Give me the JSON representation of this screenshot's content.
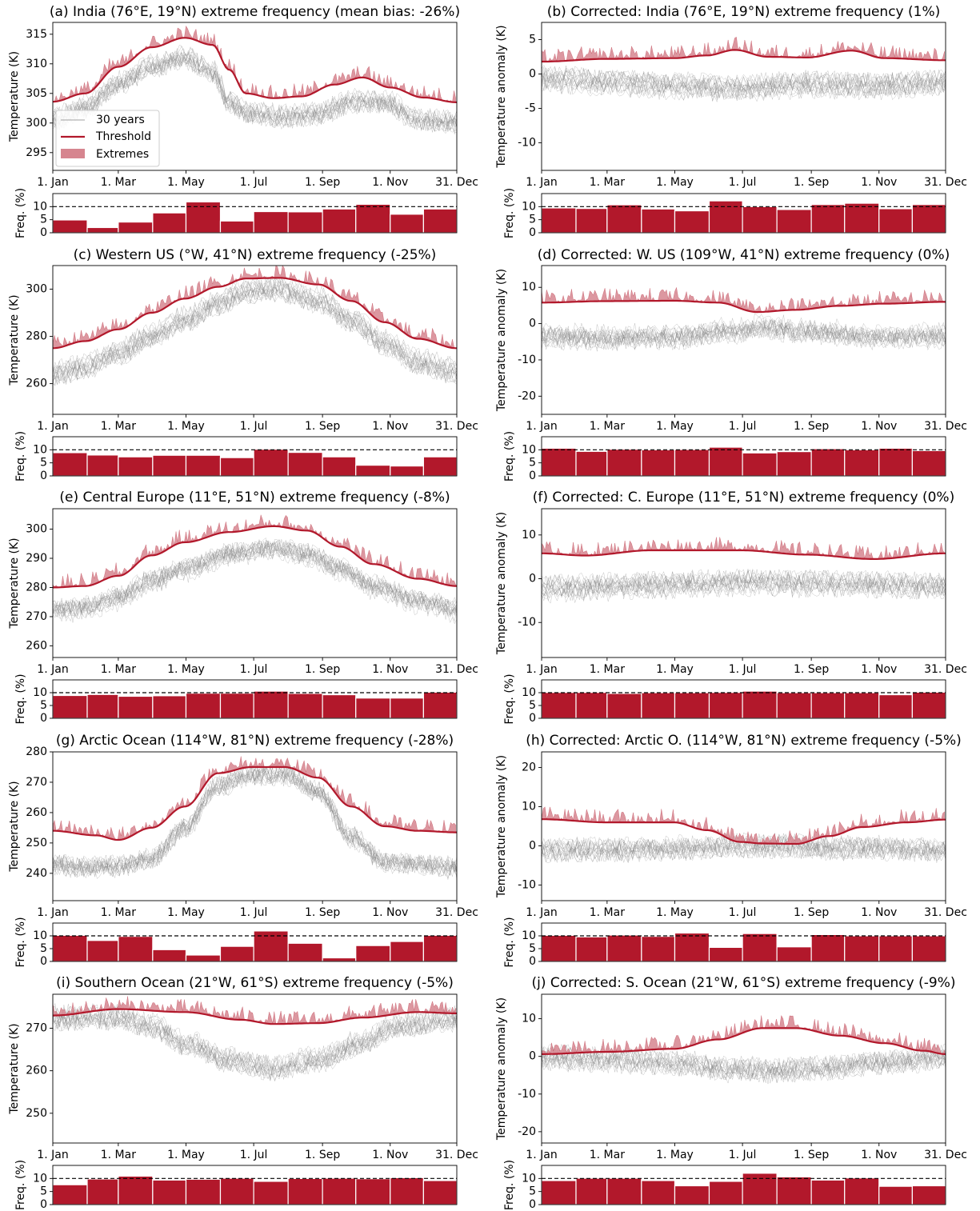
{
  "colors": {
    "threshold": "#b2182b",
    "extremes": "#d6858f",
    "bars": "#b2182b",
    "years": "#808080"
  },
  "month_tick_labels": [
    "1. Jan",
    "1. Mar",
    "1. May",
    "1. Jul",
    "1. Sep",
    "1. Nov",
    "31. Dec"
  ],
  "reference_line": 10,
  "legend": {
    "years": "30 years",
    "threshold": "Threshold",
    "extremes": "Extremes"
  },
  "chart_data": [
    {
      "id": "a",
      "type": "line",
      "title": "(a) India (76°E, 19°N) extreme frequency (mean bias: -26%)",
      "ylabel": "Temperature (K)",
      "ylim": [
        292,
        317
      ],
      "yticks": [
        295,
        300,
        305,
        310,
        315
      ],
      "threshold_curve": [
        [
          1,
          303.6
        ],
        [
          30,
          305
        ],
        [
          60,
          309.5
        ],
        [
          90,
          312.8
        ],
        [
          120,
          314.4
        ],
        [
          145,
          313.2
        ],
        [
          160,
          309
        ],
        [
          175,
          305
        ],
        [
          200,
          304.2
        ],
        [
          225,
          304.5
        ],
        [
          255,
          306.5
        ],
        [
          280,
          307.7
        ],
        [
          305,
          306
        ],
        [
          335,
          304.3
        ],
        [
          365,
          303.5
        ]
      ],
      "years_curve": [
        [
          1,
          301
        ],
        [
          30,
          303
        ],
        [
          60,
          307
        ],
        [
          90,
          310
        ],
        [
          120,
          311.5
        ],
        [
          145,
          309
        ],
        [
          160,
          304
        ],
        [
          180,
          302
        ],
        [
          210,
          301.5
        ],
        [
          240,
          302
        ],
        [
          270,
          304
        ],
        [
          300,
          304
        ],
        [
          330,
          301
        ],
        [
          365,
          300.5
        ]
      ],
      "freq_ylabel": "Freq. (%)",
      "freq_yticks": [
        0,
        5,
        10
      ],
      "freq": [
        4.9,
        2.0,
        4.1,
        7.6,
        11.8,
        4.5,
        8.1,
        8.0,
        9.1,
        10.9,
        7.1,
        9.1
      ]
    },
    {
      "id": "b",
      "type": "line",
      "title": "(b) Corrected: India (76°E, 19°N) extreme frequency (1%)",
      "ylabel": "Temperature anomaly (K)",
      "ylim": [
        -14,
        7.5
      ],
      "yticks": [
        -10,
        -5,
        0,
        5
      ],
      "threshold_curve": [
        [
          1,
          1.8
        ],
        [
          60,
          2.2
        ],
        [
          120,
          2.3
        ],
        [
          150,
          2.7
        ],
        [
          175,
          3.5
        ],
        [
          205,
          2.5
        ],
        [
          240,
          2.4
        ],
        [
          280,
          3.4
        ],
        [
          310,
          2.3
        ],
        [
          365,
          2.0
        ]
      ],
      "years_curve": [
        [
          1,
          -0.5
        ],
        [
          60,
          -1
        ],
        [
          120,
          -1.5
        ],
        [
          175,
          -1.8
        ],
        [
          240,
          -1.3
        ],
        [
          300,
          -1.5
        ],
        [
          365,
          -1.0
        ]
      ],
      "freq_ylabel": "Freq. (%)",
      "freq_yticks": [
        0,
        5,
        10
      ],
      "freq": [
        9.5,
        9.3,
        10.7,
        9.1,
        8.4,
        12.2,
        10.0,
        8.9,
        10.8,
        11.3,
        9.2,
        10.8
      ]
    },
    {
      "id": "c",
      "type": "line",
      "title": "(c) Western US (°W, 41°N) extreme frequency (-25%)",
      "ylabel": "Temperature (K)",
      "ylim": [
        247,
        310
      ],
      "yticks": [
        260,
        280,
        300
      ],
      "threshold_curve": [
        [
          1,
          275
        ],
        [
          30,
          278
        ],
        [
          60,
          283
        ],
        [
          90,
          290
        ],
        [
          120,
          296
        ],
        [
          150,
          301
        ],
        [
          175,
          304.5
        ],
        [
          205,
          304.8
        ],
        [
          240,
          302
        ],
        [
          270,
          295
        ],
        [
          300,
          286
        ],
        [
          330,
          279
        ],
        [
          365,
          275
        ]
      ],
      "years_curve": [
        [
          1,
          265
        ],
        [
          30,
          268
        ],
        [
          60,
          274
        ],
        [
          90,
          281
        ],
        [
          120,
          288
        ],
        [
          150,
          295
        ],
        [
          175,
          300
        ],
        [
          205,
          301
        ],
        [
          240,
          296
        ],
        [
          270,
          288
        ],
        [
          300,
          278
        ],
        [
          330,
          270
        ],
        [
          365,
          266
        ]
      ],
      "freq_ylabel": "Freq. (%)",
      "freq_yticks": [
        0,
        5,
        10
      ],
      "freq": [
        8.9,
        8.0,
        7.3,
        7.9,
        7.9,
        7.0,
        10.2,
        9.0,
        7.3,
        4.1,
        3.8,
        7.3
      ]
    },
    {
      "id": "d",
      "type": "line",
      "title": "(d) Corrected: W. US (109°W, 41°N) extreme frequency (0%)",
      "ylabel": "Temperature anomaly (K)",
      "ylim": [
        -25,
        16
      ],
      "yticks": [
        -20,
        -10,
        0,
        10
      ],
      "threshold_curve": [
        [
          1,
          5.8
        ],
        [
          60,
          6.2
        ],
        [
          120,
          6.3
        ],
        [
          160,
          5.8
        ],
        [
          195,
          3.2
        ],
        [
          230,
          3.8
        ],
        [
          270,
          4.9
        ],
        [
          310,
          5.5
        ],
        [
          365,
          6.0
        ]
      ],
      "years_curve": [
        [
          1,
          -3
        ],
        [
          60,
          -3.5
        ],
        [
          120,
          -3
        ],
        [
          175,
          -1.5
        ],
        [
          200,
          -0.5
        ],
        [
          240,
          -1.5
        ],
        [
          300,
          -3
        ],
        [
          365,
          -3
        ]
      ],
      "freq_ylabel": "Freq. (%)",
      "freq_yticks": [
        0,
        5,
        10
      ],
      "freq": [
        10.6,
        9.4,
        10.2,
        10.0,
        10.1,
        11.0,
        8.8,
        9.3,
        10.4,
        10.0,
        10.6,
        9.7
      ]
    },
    {
      "id": "e",
      "type": "line",
      "title": "(e) Central Europe (11°E, 51°N) extreme frequency (-8%)",
      "ylabel": "Temperature (K)",
      "ylim": [
        256,
        307
      ],
      "yticks": [
        260,
        270,
        280,
        290,
        300
      ],
      "threshold_curve": [
        [
          1,
          280
        ],
        [
          30,
          280.5
        ],
        [
          60,
          284
        ],
        [
          90,
          291
        ],
        [
          120,
          295.5
        ],
        [
          160,
          299
        ],
        [
          200,
          301
        ],
        [
          230,
          299.5
        ],
        [
          260,
          294
        ],
        [
          290,
          288
        ],
        [
          330,
          283
        ],
        [
          365,
          280.5
        ]
      ],
      "years_curve": [
        [
          1,
          273
        ],
        [
          30,
          273.5
        ],
        [
          60,
          277
        ],
        [
          90,
          283
        ],
        [
          120,
          287
        ],
        [
          160,
          292
        ],
        [
          200,
          294
        ],
        [
          230,
          292
        ],
        [
          260,
          287
        ],
        [
          290,
          281
        ],
        [
          330,
          276
        ],
        [
          365,
          273
        ]
      ],
      "freq_ylabel": "Freq. (%)",
      "freq_yticks": [
        0,
        5,
        10
      ],
      "freq": [
        8.9,
        9.3,
        8.6,
        8.8,
        9.8,
        9.8,
        10.6,
        9.7,
        9.2,
        7.9,
        7.9,
        10.2
      ]
    },
    {
      "id": "f",
      "type": "line",
      "title": "(f) Corrected: C. Europe (11°E, 51°N) extreme frequency (0%)",
      "ylabel": "Temperature anomaly (K)",
      "ylim": [
        -18,
        16
      ],
      "yticks": [
        -10,
        0,
        10
      ],
      "threshold_curve": [
        [
          1,
          5.8
        ],
        [
          40,
          5.3
        ],
        [
          100,
          6.5
        ],
        [
          180,
          6.5
        ],
        [
          240,
          5.5
        ],
        [
          300,
          4.5
        ],
        [
          365,
          5.8
        ]
      ],
      "years_curve": [
        [
          1,
          -2
        ],
        [
          60,
          -1.5
        ],
        [
          120,
          -1
        ],
        [
          180,
          -0.5
        ],
        [
          240,
          -0.8
        ],
        [
          300,
          -1
        ],
        [
          365,
          -1.5
        ]
      ],
      "freq_ylabel": "Freq. (%)",
      "freq_yticks": [
        0,
        5,
        10
      ],
      "freq": [
        10.1,
        10.1,
        9.7,
        10.0,
        10.0,
        10.1,
        10.6,
        10.0,
        10.0,
        10.0,
        9.2,
        10.2
      ]
    },
    {
      "id": "g",
      "type": "line",
      "title": "(g) Arctic Ocean (114°W, 81°N) extreme frequency (-28%)",
      "ylabel": "Temperature (K)",
      "ylim": [
        231,
        280
      ],
      "yticks": [
        240,
        250,
        260,
        270,
        280
      ],
      "threshold_curve": [
        [
          1,
          254
        ],
        [
          40,
          252.5
        ],
        [
          60,
          251
        ],
        [
          90,
          255
        ],
        [
          120,
          262
        ],
        [
          150,
          273
        ],
        [
          180,
          275
        ],
        [
          210,
          275
        ],
        [
          240,
          271.5
        ],
        [
          270,
          262
        ],
        [
          300,
          255.5
        ],
        [
          330,
          254
        ],
        [
          365,
          253.5
        ]
      ],
      "years_curve": [
        [
          1,
          244
        ],
        [
          30,
          243
        ],
        [
          60,
          243.5
        ],
        [
          90,
          246
        ],
        [
          120,
          256
        ],
        [
          150,
          270
        ],
        [
          180,
          273.5
        ],
        [
          210,
          273.8
        ],
        [
          240,
          268
        ],
        [
          270,
          253
        ],
        [
          300,
          245
        ],
        [
          330,
          244
        ],
        [
          365,
          243
        ]
      ],
      "freq_ylabel": "Freq. (%)",
      "freq_yticks": [
        0,
        5,
        10
      ],
      "freq": [
        10.2,
        8.2,
        9.8,
        4.6,
        2.5,
        5.9,
        11.9,
        7.1,
        1.4,
        6.2,
        7.8,
        10.2
      ]
    },
    {
      "id": "h",
      "type": "line",
      "title": "(h) Corrected: Arctic O. (114°W, 81°N) extreme frequency (-5%)",
      "ylabel": "Temperature anomaly (K)",
      "ylim": [
        -14,
        24
      ],
      "yticks": [
        -10,
        0,
        10,
        20
      ],
      "threshold_curve": [
        [
          1,
          6.8
        ],
        [
          60,
          6
        ],
        [
          120,
          6
        ],
        [
          150,
          4
        ],
        [
          180,
          1
        ],
        [
          200,
          0.6
        ],
        [
          230,
          0.5
        ],
        [
          260,
          2.5
        ],
        [
          290,
          4.8
        ],
        [
          330,
          6
        ],
        [
          365,
          6.7
        ]
      ],
      "years_curve": [
        [
          1,
          -1
        ],
        [
          60,
          -1
        ],
        [
          120,
          -0.5
        ],
        [
          180,
          0
        ],
        [
          230,
          0
        ],
        [
          260,
          -0.5
        ],
        [
          300,
          -0.5
        ],
        [
          365,
          -1
        ]
      ],
      "freq_ylabel": "Freq. (%)",
      "freq_yticks": [
        0,
        5,
        10
      ],
      "freq": [
        10.2,
        9.6,
        10.3,
        9.8,
        11.1,
        5.5,
        10.9,
        5.7,
        10.5,
        10.0,
        10.0,
        10.0
      ]
    },
    {
      "id": "i",
      "type": "line",
      "title": "(i) Southern Ocean (21°W, 61°S) extreme frequency (-5%)",
      "ylabel": "Temperature (K)",
      "ylim": [
        243,
        278
      ],
      "yticks": [
        250,
        260,
        270
      ],
      "threshold_curve": [
        [
          1,
          273
        ],
        [
          60,
          274.5
        ],
        [
          120,
          273.8
        ],
        [
          170,
          272
        ],
        [
          200,
          271
        ],
        [
          240,
          271.2
        ],
        [
          280,
          272.5
        ],
        [
          330,
          273.8
        ],
        [
          365,
          273.5
        ]
      ],
      "years_curve": [
        [
          1,
          272.8
        ],
        [
          60,
          273
        ],
        [
          90,
          271
        ],
        [
          120,
          267
        ],
        [
          160,
          263
        ],
        [
          200,
          261
        ],
        [
          240,
          263
        ],
        [
          280,
          267
        ],
        [
          310,
          271
        ],
        [
          365,
          272.5
        ]
      ],
      "freq_ylabel": "Freq. (%)",
      "freq_yticks": [
        0,
        5,
        10
      ],
      "freq": [
        7.6,
        9.8,
        10.9,
        9.4,
        9.7,
        10.1,
        8.9,
        10.0,
        10.1,
        9.9,
        10.3,
        9.2
      ]
    },
    {
      "id": "j",
      "type": "line",
      "title": "(j) Corrected: S. Ocean (21°W, 61°S) extreme frequency (-9%)",
      "ylabel": "Temperature anomaly (K)",
      "ylim": [
        -23,
        16.5
      ],
      "yticks": [
        -20,
        -10,
        0,
        10
      ],
      "threshold_curve": [
        [
          1,
          0.6
        ],
        [
          60,
          1.2
        ],
        [
          120,
          2
        ],
        [
          160,
          4.5
        ],
        [
          200,
          7.5
        ],
        [
          230,
          7.5
        ],
        [
          270,
          5.5
        ],
        [
          310,
          3.5
        ],
        [
          345,
          1.5
        ],
        [
          365,
          0.6
        ]
      ],
      "years_curve": [
        [
          1,
          0
        ],
        [
          60,
          -0.5
        ],
        [
          120,
          -1.5
        ],
        [
          170,
          -3
        ],
        [
          210,
          -3.5
        ],
        [
          250,
          -3
        ],
        [
          300,
          -1.5
        ],
        [
          365,
          0
        ]
      ],
      "freq_ylabel": "Freq. (%)",
      "freq_yticks": [
        0,
        5,
        10
      ],
      "freq": [
        9.2,
        10.1,
        10.1,
        9.2,
        7.2,
        8.9,
        12.0,
        10.6,
        9.4,
        10.2,
        7.0,
        7.2
      ]
    }
  ]
}
